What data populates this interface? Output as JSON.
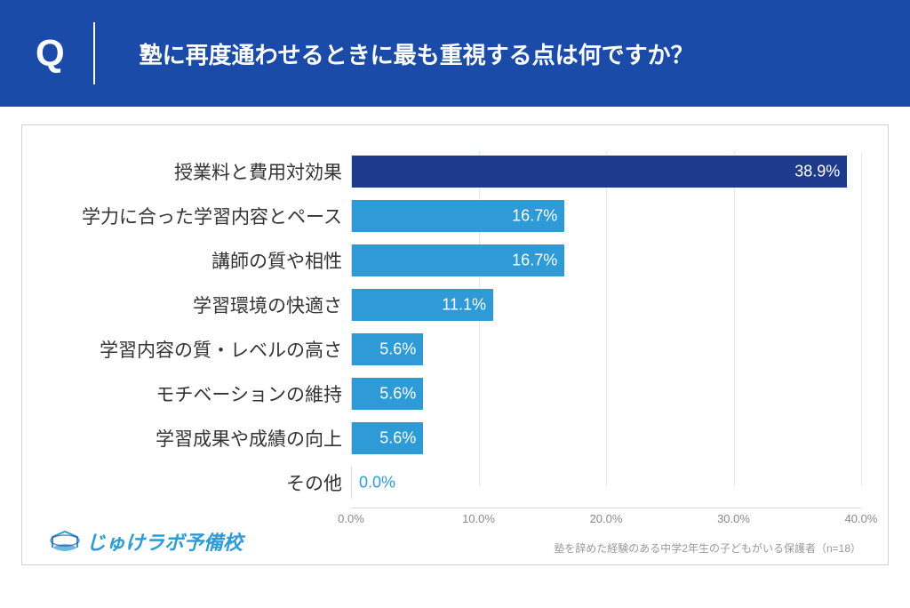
{
  "header": {
    "q_marker": "Q",
    "question": "塾に再度通わせるときに最も重視する点は何ですか？",
    "bg_color": "#1a4ba8",
    "text_color": "#ffffff"
  },
  "chart": {
    "type": "bar",
    "orientation": "horizontal",
    "xlim": [
      0,
      40
    ],
    "xtick_step": 10,
    "xtick_suffix": ".0%",
    "grid_color": "#e8e8e8",
    "label_fontsize": 21,
    "value_fontsize": 18,
    "tick_fontsize": 13,
    "tick_color": "#888888",
    "categories": [
      "授業料と費用対効果",
      "学力に合った学習内容とペース",
      "講師の質や相性",
      "学習環境の快適さ",
      "学習内容の質・レベルの高さ",
      "モチベーションの維持",
      "学習成果や成績の向上",
      "その他"
    ],
    "values": [
      38.9,
      16.7,
      16.7,
      11.1,
      5.6,
      5.6,
      5.6,
      0.0
    ],
    "value_labels": [
      "38.9%",
      "16.7%",
      "16.7%",
      "11.1%",
      "5.6%",
      "5.6%",
      "5.6%",
      "0.0%"
    ],
    "bar_colors": [
      "#1e3a8a",
      "#2e9bd6",
      "#2e9bd6",
      "#2e9bd6",
      "#2e9bd6",
      "#2e9bd6",
      "#2e9bd6",
      "#2e9bd6"
    ],
    "value_label_positions": [
      "inside",
      "inside",
      "inside",
      "inside",
      "inside",
      "inside",
      "inside",
      "outside"
    ],
    "value_label_colors": [
      "#ffffff",
      "#ffffff",
      "#ffffff",
      "#ffffff",
      "#ffffff",
      "#ffffff",
      "#ffffff",
      "#2e9bd6"
    ],
    "xticks": [
      {
        "pos": 0,
        "label": "0.0%"
      },
      {
        "pos": 10,
        "label": "10.0%"
      },
      {
        "pos": 20,
        "label": "20.0%"
      },
      {
        "pos": 30,
        "label": "30.0%"
      },
      {
        "pos": 40,
        "label": "40.0%"
      }
    ]
  },
  "footer": {
    "logo_text": "じゅけラボ予備校",
    "logo_color": "#2e9bd6",
    "note": "塾を辞めた経験のある中学2年生の子どもがいる保護者（n=18）"
  }
}
